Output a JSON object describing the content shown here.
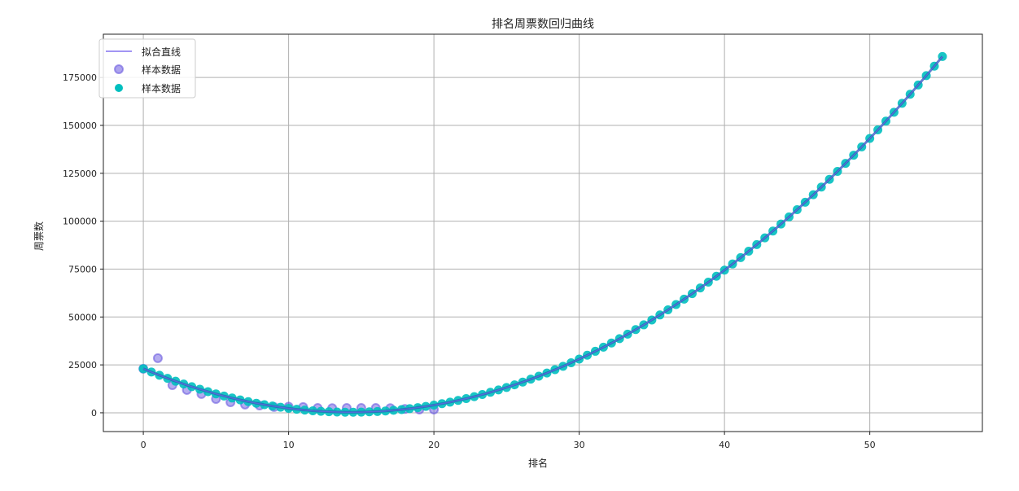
{
  "chart_data": {
    "type": "scatter",
    "title": "排名周票数回归曲线",
    "xlabel": "排名",
    "ylabel": "周票数",
    "xlim": [
      -2.75,
      57.75
    ],
    "ylim": [
      -9800,
      197600
    ],
    "xticks": [
      0,
      10,
      20,
      30,
      40,
      50
    ],
    "yticks": [
      0,
      25000,
      50000,
      75000,
      100000,
      125000,
      150000,
      175000
    ],
    "grid": true,
    "legend_position": "top-left",
    "fit_coefficients": {
      "a": 111.8,
      "b": -3186,
      "c": 23000
    },
    "fit_x_range": [
      0,
      55
    ],
    "fit_point_count": 100,
    "series": [
      {
        "name": "拟合直线",
        "kind": "line",
        "color": "#7b68ee"
      },
      {
        "name": "样本数据",
        "kind": "scatter",
        "color": "#6a5ae0",
        "x": [
          0,
          1,
          2,
          3,
          4,
          5,
          6,
          7,
          8,
          9,
          10,
          11,
          12,
          13,
          14,
          15,
          16,
          17,
          18,
          19,
          20
        ],
        "y": [
          23000,
          28500,
          14400,
          11900,
          9800,
          7200,
          5500,
          4300,
          3800,
          3000,
          3200,
          3000,
          2500,
          2400,
          2500,
          2500,
          2500,
          2400,
          2000,
          1700,
          1700
        ]
      },
      {
        "name": "样本数据",
        "kind": "scatter",
        "color": "#00bfbf"
      }
    ]
  }
}
